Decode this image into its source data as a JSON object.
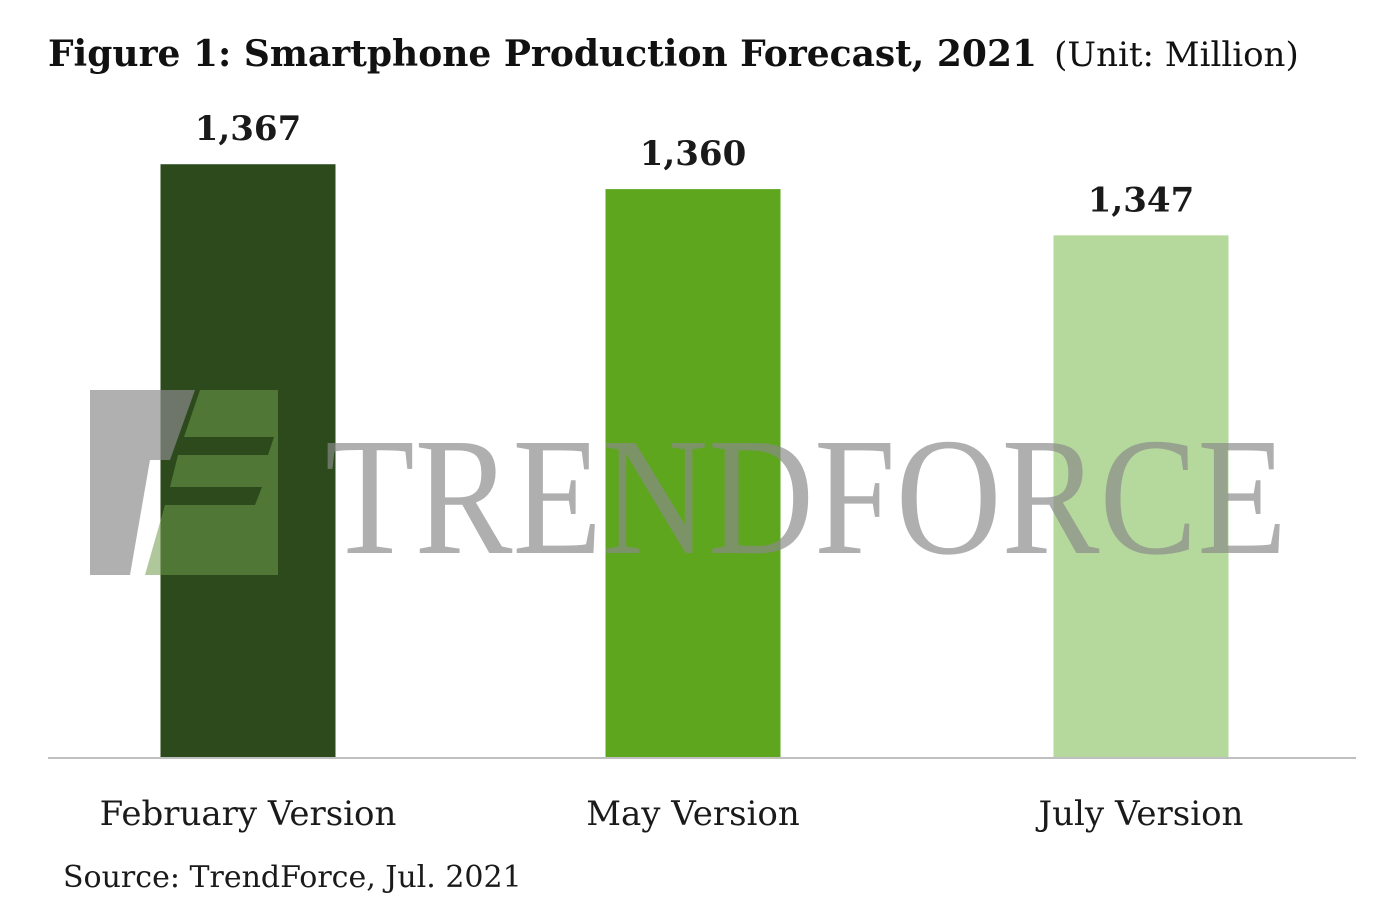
{
  "chart_data": {
    "type": "bar",
    "title": "Figure 1: Smartphone Production Forecast, 2021",
    "title_unit": "(Unit: Million)",
    "categories": [
      "February Version",
      "May Version",
      "July Version"
    ],
    "values": [
      1367,
      1360,
      1347
    ],
    "value_labels": [
      "1,367",
      "1,360",
      "1,347"
    ],
    "colors": [
      "#2c4a1c",
      "#5fa61f",
      "#b5d99c"
    ],
    "ylim": [
      1200,
      1380
    ],
    "grid": false,
    "legend": "none",
    "source": "Source: TrendForce, Jul. 2021"
  },
  "watermark": {
    "text": "TRENDFORCE",
    "logo": "trendforce-logo"
  }
}
